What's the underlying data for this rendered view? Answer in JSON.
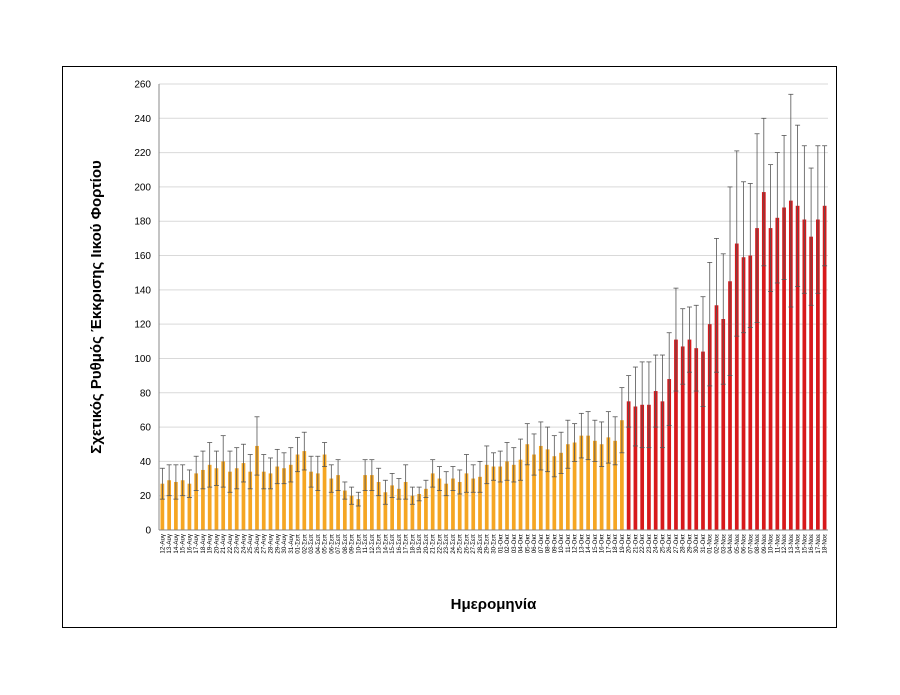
{
  "chart_data": {
    "type": "bar",
    "title": "",
    "xlabel": "Ημερομηνία",
    "ylabel": "Σχετικός Ρυθμός Έκκρισης Ιικού Φορτίου",
    "ylim": [
      0,
      260
    ],
    "yticks": [
      0,
      20,
      40,
      60,
      80,
      100,
      120,
      140,
      160,
      180,
      200,
      220,
      240,
      260
    ],
    "grid": "horizontal",
    "legend": "none",
    "error_bars": true,
    "colors": {
      "orange": "#F5A623",
      "red": "#D7191C",
      "errorbar": "#555555",
      "grid": "#D9D9D9"
    },
    "categories": [
      "12-Αυγ",
      "13-Αυγ",
      "14-Αυγ",
      "15-Αυγ",
      "16-Αυγ",
      "17-Αυγ",
      "18-Αυγ",
      "19-Αυγ",
      "20-Αυγ",
      "21-Αυγ",
      "22-Αυγ",
      "23-Αυγ",
      "24-Αυγ",
      "25-Αυγ",
      "26-Αυγ",
      "27-Αυγ",
      "28-Αυγ",
      "29-Αυγ",
      "30-Αυγ",
      "31-Αυγ",
      "01-Σεπ",
      "02-Σεπ",
      "03-Σεπ",
      "04-Σεπ",
      "05-Σεπ",
      "06-Σεπ",
      "07-Σεπ",
      "08-Σεπ",
      "09-Σεπ",
      "10-Σεπ",
      "11-Σεπ",
      "12-Σεπ",
      "13-Σεπ",
      "14-Σεπ",
      "15-Σεπ",
      "16-Σεπ",
      "17-Σεπ",
      "18-Σεπ",
      "19-Σεπ",
      "20-Σεπ",
      "21-Σεπ",
      "22-Σεπ",
      "23-Σεπ",
      "24-Σεπ",
      "25-Σεπ",
      "26-Σεπ",
      "27-Σεπ",
      "28-Σεπ",
      "29-Σεπ",
      "30-Σεπ",
      "01-Οκτ",
      "02-Οκτ",
      "03-Οκτ",
      "04-Οκτ",
      "05-Οκτ",
      "06-Οκτ",
      "07-Οκτ",
      "08-Οκτ",
      "09-Οκτ",
      "10-Οκτ",
      "11-Οκτ",
      "12-Οκτ",
      "13-Οκτ",
      "14-Οκτ",
      "15-Οκτ",
      "16-Οκτ",
      "17-Οκτ",
      "18-Οκτ",
      "19-Οκτ",
      "20-Οκτ",
      "21-Οκτ",
      "22-Οκτ",
      "23-Οκτ",
      "24-Οκτ",
      "25-Οκτ",
      "26-Οκτ",
      "27-Οκτ",
      "28-Οκτ",
      "29-Οκτ",
      "30-Οκτ",
      "31-Οκτ",
      "01-Νοε",
      "02-Νοε",
      "03-Νοε",
      "04-Νοε",
      "05-Νοε",
      "06-Νοε",
      "07-Νοε",
      "08-Νοε",
      "09-Νοε",
      "10-Νοε",
      "11-Νοε",
      "12-Νοε",
      "13-Νοε",
      "14-Νοε",
      "15-Νοε",
      "16-Νοε",
      "17-Νοε",
      "18-Νοε"
    ],
    "values": [
      27,
      29,
      28,
      29,
      27,
      33,
      35,
      38,
      36,
      40,
      34,
      36,
      39,
      34,
      49,
      34,
      33,
      37,
      36,
      38,
      44,
      46,
      34,
      33,
      44,
      30,
      32,
      23,
      20,
      18,
      32,
      32,
      28,
      22,
      26,
      24,
      28,
      20,
      21,
      24,
      33,
      30,
      27,
      30,
      28,
      33,
      30,
      31,
      38,
      37,
      37,
      40,
      38,
      41,
      50,
      44,
      49,
      47,
      43,
      45,
      50,
      51,
      55,
      55,
      52,
      50,
      54,
      52,
      64,
      75,
      72,
      73,
      73,
      81,
      75,
      88,
      111,
      107,
      111,
      106,
      104,
      120,
      131,
      123,
      145,
      167,
      159,
      160,
      176,
      197,
      176,
      182,
      188,
      192,
      189,
      181,
      171,
      181,
      189
    ],
    "errors": [
      9,
      9,
      10,
      9,
      8,
      10,
      11,
      13,
      10,
      15,
      12,
      12,
      11,
      10,
      17,
      10,
      9,
      10,
      9,
      10,
      10,
      11,
      9,
      10,
      7,
      8,
      9,
      5,
      5,
      4,
      9,
      9,
      8,
      7,
      7,
      6,
      10,
      5,
      4,
      5,
      8,
      7,
      7,
      7,
      7,
      11,
      8,
      9,
      11,
      8,
      9,
      11,
      10,
      12,
      12,
      12,
      14,
      13,
      12,
      12,
      14,
      11,
      13,
      14,
      12,
      13,
      15,
      14,
      19,
      15,
      23,
      25,
      25,
      21,
      27,
      27,
      30,
      22,
      19,
      25,
      32,
      36,
      39,
      38,
      55,
      54,
      44,
      42,
      55,
      43,
      37,
      38,
      42,
      62,
      47,
      43,
      40,
      43,
      35
    ],
    "red_start_index": 69
  }
}
